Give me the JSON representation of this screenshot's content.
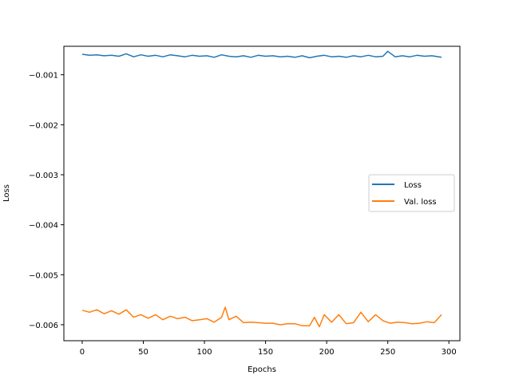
{
  "chart_data": {
    "type": "line",
    "xlabel": "Epochs",
    "ylabel": "Loss",
    "xlim": [
      -15,
      309
    ],
    "ylim": [
      -0.00632,
      -0.00043
    ],
    "xticks": [
      0,
      50,
      100,
      150,
      200,
      250,
      300
    ],
    "xtick_labels": [
      "0",
      "50",
      "100",
      "150",
      "200",
      "250",
      "300"
    ],
    "yticks": [
      -0.006,
      -0.005,
      -0.004,
      -0.003,
      -0.002,
      -0.001
    ],
    "ytick_labels": [
      "−0.006",
      "−0.005",
      "−0.004",
      "−0.003",
      "−0.002",
      "−0.001"
    ],
    "grid": false,
    "legend_position": "center-right",
    "series": [
      {
        "name": "Loss",
        "color": "#1f77b4",
        "x": [
          0,
          6,
          12,
          18,
          24,
          30,
          36,
          42,
          48,
          54,
          60,
          66,
          72,
          78,
          84,
          90,
          96,
          102,
          108,
          114,
          120,
          126,
          132,
          138,
          144,
          150,
          156,
          162,
          168,
          174,
          180,
          186,
          192,
          198,
          204,
          210,
          216,
          222,
          228,
          234,
          240,
          246,
          250,
          256,
          262,
          268,
          274,
          280,
          286,
          294
        ],
        "y": [
          -0.00059,
          -0.00061,
          -0.0006,
          -0.00062,
          -0.00061,
          -0.00063,
          -0.00058,
          -0.00064,
          -0.0006,
          -0.00063,
          -0.00061,
          -0.00064,
          -0.0006,
          -0.00062,
          -0.00064,
          -0.00061,
          -0.00063,
          -0.00062,
          -0.00065,
          -0.0006,
          -0.00063,
          -0.00064,
          -0.00062,
          -0.00065,
          -0.00061,
          -0.00063,
          -0.00062,
          -0.00064,
          -0.00063,
          -0.00065,
          -0.00062,
          -0.00066,
          -0.00063,
          -0.00061,
          -0.00064,
          -0.00063,
          -0.00065,
          -0.00062,
          -0.00064,
          -0.00061,
          -0.00064,
          -0.00063,
          -0.00053,
          -0.00064,
          -0.00062,
          -0.00064,
          -0.00061,
          -0.00063,
          -0.00062,
          -0.00065
        ]
      },
      {
        "name": "Val. loss",
        "color": "#ff7f0e",
        "x": [
          0,
          6,
          12,
          18,
          24,
          30,
          36,
          42,
          48,
          54,
          60,
          66,
          72,
          78,
          84,
          90,
          96,
          102,
          108,
          114,
          117,
          120,
          126,
          132,
          138,
          144,
          150,
          156,
          162,
          168,
          174,
          180,
          186,
          190,
          194,
          198,
          204,
          210,
          216,
          222,
          228,
          234,
          240,
          246,
          252,
          258,
          264,
          270,
          276,
          282,
          288,
          294
        ],
        "y": [
          -0.00571,
          -0.00575,
          -0.0057,
          -0.00578,
          -0.00572,
          -0.00579,
          -0.0057,
          -0.00585,
          -0.0058,
          -0.00587,
          -0.0058,
          -0.0059,
          -0.00583,
          -0.00588,
          -0.00585,
          -0.00592,
          -0.0059,
          -0.00588,
          -0.00595,
          -0.00585,
          -0.00565,
          -0.0059,
          -0.00583,
          -0.00596,
          -0.00595,
          -0.00596,
          -0.00597,
          -0.00597,
          -0.006,
          -0.00598,
          -0.00598,
          -0.00602,
          -0.00602,
          -0.00585,
          -0.00604,
          -0.0058,
          -0.00595,
          -0.0058,
          -0.00598,
          -0.00596,
          -0.00575,
          -0.00594,
          -0.0058,
          -0.00592,
          -0.00597,
          -0.00595,
          -0.00596,
          -0.00598,
          -0.00597,
          -0.00594,
          -0.00596,
          -0.0058
        ]
      }
    ]
  }
}
